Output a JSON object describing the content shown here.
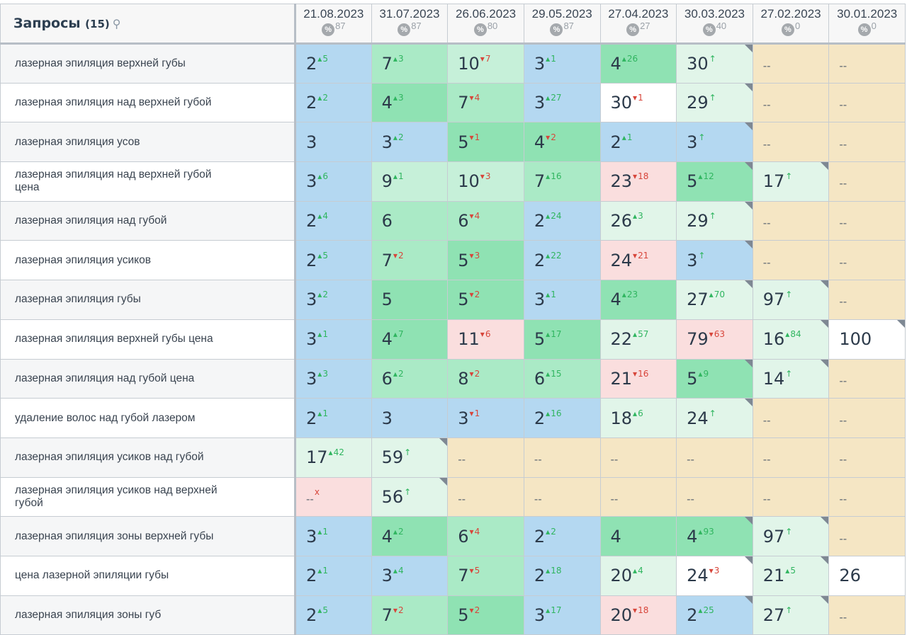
{
  "header": {
    "title": "Запросы",
    "count": "(15)",
    "search_icon": "⚲"
  },
  "palette": {
    "b": "#b4d8f1",
    "g": "#8fe2b3",
    "m": "#aaeac6",
    "l": "#c6f0d9",
    "v": "#e1f5e9",
    "p": "#fadede",
    "w": "#ffffff",
    "y": "#f5e6c4"
  },
  "arrows": {
    "up": "▴",
    "down": "▾",
    "new": "↑",
    "x": "x"
  },
  "columns": [
    {
      "date": "21.08.2023",
      "pct": "87"
    },
    {
      "date": "31.07.2023",
      "pct": "87"
    },
    {
      "date": "26.06.2023",
      "pct": "80"
    },
    {
      "date": "29.05.2023",
      "pct": "87"
    },
    {
      "date": "27.04.2023",
      "pct": "27"
    },
    {
      "date": "30.03.2023",
      "pct": "40"
    },
    {
      "date": "27.02.2023",
      "pct": "0"
    },
    {
      "date": "30.01.2023",
      "pct": "0"
    }
  ],
  "rows": [
    {
      "q": "лазерная эпиляция верхней губы",
      "cells": [
        [
          "2",
          "5",
          "up",
          "b",
          0
        ],
        [
          "7",
          "3",
          "up",
          "m",
          0
        ],
        [
          "10",
          "7",
          "down",
          "l",
          0
        ],
        [
          "3",
          "1",
          "up",
          "b",
          0
        ],
        [
          "4",
          "26",
          "up",
          "g",
          0
        ],
        [
          "30",
          "",
          "new",
          "v",
          1
        ],
        [
          "--",
          "",
          "",
          "y",
          0
        ],
        [
          "--",
          "",
          "",
          "y",
          0
        ]
      ]
    },
    {
      "q": "лазерная эпиляция над верхней губой",
      "cells": [
        [
          "2",
          "2",
          "up",
          "b",
          0
        ],
        [
          "4",
          "3",
          "up",
          "g",
          0
        ],
        [
          "7",
          "4",
          "down",
          "m",
          0
        ],
        [
          "3",
          "27",
          "up",
          "b",
          0
        ],
        [
          "30",
          "1",
          "down",
          "w",
          0
        ],
        [
          "29",
          "",
          "new",
          "v",
          1
        ],
        [
          "--",
          "",
          "",
          "y",
          0
        ],
        [
          "--",
          "",
          "",
          "y",
          0
        ]
      ]
    },
    {
      "q": "лазерная эпиляция усов",
      "cells": [
        [
          "3",
          "",
          "",
          "b",
          0
        ],
        [
          "3",
          "2",
          "up",
          "b",
          0
        ],
        [
          "5",
          "1",
          "down",
          "g",
          0
        ],
        [
          "4",
          "2",
          "down",
          "g",
          0
        ],
        [
          "2",
          "1",
          "up",
          "b",
          0
        ],
        [
          "3",
          "",
          "new",
          "b",
          1
        ],
        [
          "--",
          "",
          "",
          "y",
          0
        ],
        [
          "--",
          "",
          "",
          "y",
          0
        ]
      ]
    },
    {
      "q": "лазерная эпиляция над верхней губой цена",
      "cells": [
        [
          "3",
          "6",
          "up",
          "b",
          0
        ],
        [
          "9",
          "1",
          "up",
          "l",
          0
        ],
        [
          "10",
          "3",
          "down",
          "l",
          0
        ],
        [
          "7",
          "16",
          "up",
          "m",
          0
        ],
        [
          "23",
          "18",
          "down",
          "p",
          0
        ],
        [
          "5",
          "12",
          "up",
          "g",
          1
        ],
        [
          "17",
          "",
          "new",
          "v",
          1
        ],
        [
          "--",
          "",
          "",
          "y",
          0
        ]
      ]
    },
    {
      "q": "лазерная эпиляция над губой",
      "cells": [
        [
          "2",
          "4",
          "up",
          "b",
          0
        ],
        [
          "6",
          "",
          "",
          "m",
          0
        ],
        [
          "6",
          "4",
          "down",
          "m",
          0
        ],
        [
          "2",
          "24",
          "up",
          "b",
          0
        ],
        [
          "26",
          "3",
          "up",
          "v",
          0
        ],
        [
          "29",
          "",
          "new",
          "v",
          1
        ],
        [
          "--",
          "",
          "",
          "y",
          0
        ],
        [
          "--",
          "",
          "",
          "y",
          0
        ]
      ]
    },
    {
      "q": "лазерная эпиляция усиков",
      "cells": [
        [
          "2",
          "5",
          "up",
          "b",
          0
        ],
        [
          "7",
          "2",
          "down",
          "m",
          0
        ],
        [
          "5",
          "3",
          "down",
          "g",
          0
        ],
        [
          "2",
          "22",
          "up",
          "b",
          0
        ],
        [
          "24",
          "21",
          "down",
          "p",
          0
        ],
        [
          "3",
          "",
          "new",
          "b",
          1
        ],
        [
          "--",
          "",
          "",
          "y",
          0
        ],
        [
          "--",
          "",
          "",
          "y",
          0
        ]
      ]
    },
    {
      "q": "лазерная эпиляция губы",
      "cells": [
        [
          "3",
          "2",
          "up",
          "b",
          0
        ],
        [
          "5",
          "",
          "",
          "g",
          0
        ],
        [
          "5",
          "2",
          "down",
          "g",
          0
        ],
        [
          "3",
          "1",
          "up",
          "b",
          0
        ],
        [
          "4",
          "23",
          "up",
          "g",
          0
        ],
        [
          "27",
          "70",
          "up",
          "v",
          1
        ],
        [
          "97",
          "",
          "new",
          "v",
          1
        ],
        [
          "--",
          "",
          "",
          "y",
          0
        ]
      ]
    },
    {
      "q": "лазерная эпиляция верхней губы цена",
      "cells": [
        [
          "3",
          "1",
          "up",
          "b",
          0
        ],
        [
          "4",
          "7",
          "up",
          "g",
          0
        ],
        [
          "11",
          "6",
          "down",
          "p",
          0
        ],
        [
          "5",
          "17",
          "up",
          "g",
          0
        ],
        [
          "22",
          "57",
          "up",
          "v",
          0
        ],
        [
          "79",
          "63",
          "down",
          "p",
          0
        ],
        [
          "16",
          "84",
          "up",
          "v",
          1
        ],
        [
          "100",
          "",
          "",
          "w",
          1
        ]
      ]
    },
    {
      "q": "лазерная эпиляция над губой цена",
      "cells": [
        [
          "3",
          "3",
          "up",
          "b",
          0
        ],
        [
          "6",
          "2",
          "up",
          "m",
          0
        ],
        [
          "8",
          "2",
          "down",
          "m",
          0
        ],
        [
          "6",
          "15",
          "up",
          "m",
          0
        ],
        [
          "21",
          "16",
          "down",
          "p",
          0
        ],
        [
          "5",
          "9",
          "up",
          "g",
          1
        ],
        [
          "14",
          "",
          "new",
          "v",
          1
        ],
        [
          "--",
          "",
          "",
          "y",
          0
        ]
      ]
    },
    {
      "q": "удаление волос над губой лазером",
      "cells": [
        [
          "2",
          "1",
          "up",
          "b",
          0
        ],
        [
          "3",
          "",
          "",
          "b",
          0
        ],
        [
          "3",
          "1",
          "down",
          "b",
          0
        ],
        [
          "2",
          "16",
          "up",
          "b",
          0
        ],
        [
          "18",
          "6",
          "up",
          "v",
          0
        ],
        [
          "24",
          "",
          "new",
          "v",
          1
        ],
        [
          "--",
          "",
          "",
          "y",
          0
        ],
        [
          "--",
          "",
          "",
          "y",
          0
        ]
      ]
    },
    {
      "q": "лазерная эпиляция усиков над губой",
      "cells": [
        [
          "17",
          "42",
          "up",
          "v",
          0
        ],
        [
          "59",
          "",
          "new",
          "v",
          1
        ],
        [
          "--",
          "",
          "",
          "y",
          0
        ],
        [
          "--",
          "",
          "",
          "y",
          0
        ],
        [
          "--",
          "",
          "",
          "y",
          0
        ],
        [
          "--",
          "",
          "",
          "y",
          0
        ],
        [
          "--",
          "",
          "",
          "y",
          0
        ],
        [
          "--",
          "",
          "",
          "y",
          0
        ]
      ]
    },
    {
      "q": "лазерная эпиляция усиков над верхней губой",
      "cells": [
        [
          "--",
          "",
          "x",
          "p",
          0
        ],
        [
          "56",
          "",
          "new",
          "v",
          1
        ],
        [
          "--",
          "",
          "",
          "y",
          0
        ],
        [
          "--",
          "",
          "",
          "y",
          0
        ],
        [
          "--",
          "",
          "",
          "y",
          0
        ],
        [
          "--",
          "",
          "",
          "y",
          0
        ],
        [
          "--",
          "",
          "",
          "y",
          0
        ],
        [
          "--",
          "",
          "",
          "y",
          0
        ]
      ]
    },
    {
      "q": "лазерная эпиляция зоны верхней губы",
      "cells": [
        [
          "3",
          "1",
          "up",
          "b",
          0
        ],
        [
          "4",
          "2",
          "up",
          "g",
          0
        ],
        [
          "6",
          "4",
          "down",
          "m",
          0
        ],
        [
          "2",
          "2",
          "up",
          "b",
          0
        ],
        [
          "4",
          "",
          "",
          "g",
          0
        ],
        [
          "4",
          "93",
          "up",
          "g",
          1
        ],
        [
          "97",
          "",
          "new",
          "v",
          1
        ],
        [
          "--",
          "",
          "",
          "y",
          0
        ]
      ]
    },
    {
      "q": "цена лазерной эпиляции губы",
      "cells": [
        [
          "2",
          "1",
          "up",
          "b",
          0
        ],
        [
          "3",
          "4",
          "up",
          "b",
          0
        ],
        [
          "7",
          "5",
          "down",
          "m",
          0
        ],
        [
          "2",
          "18",
          "up",
          "b",
          0
        ],
        [
          "20",
          "4",
          "up",
          "v",
          0
        ],
        [
          "24",
          "3",
          "down",
          "w",
          1
        ],
        [
          "21",
          "5",
          "up",
          "v",
          1
        ],
        [
          "26",
          "",
          "",
          "w",
          0
        ]
      ]
    },
    {
      "q": "лазерная эпиляция зоны губ",
      "cells": [
        [
          "2",
          "5",
          "up",
          "b",
          0
        ],
        [
          "7",
          "2",
          "down",
          "m",
          0
        ],
        [
          "5",
          "2",
          "down",
          "g",
          0
        ],
        [
          "3",
          "17",
          "up",
          "b",
          0
        ],
        [
          "20",
          "18",
          "down",
          "p",
          0
        ],
        [
          "2",
          "25",
          "up",
          "b",
          1
        ],
        [
          "27",
          "",
          "new",
          "v",
          1
        ],
        [
          "--",
          "",
          "",
          "y",
          0
        ]
      ]
    }
  ]
}
